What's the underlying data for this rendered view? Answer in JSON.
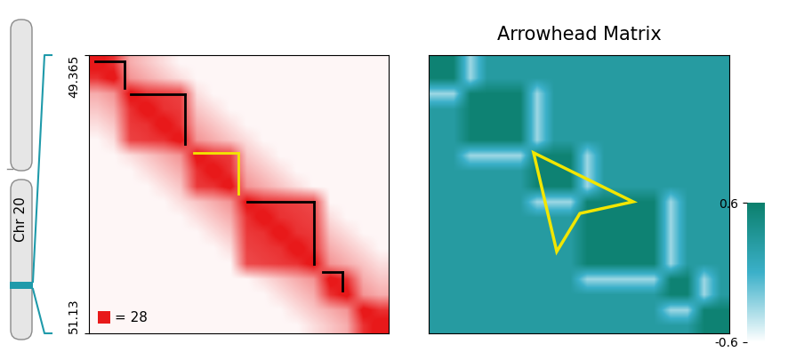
{
  "chart_data": [
    {
      "type": "heatmap",
      "chromosome_label": "Chr 20",
      "xlim": [
        49.365,
        51.13
      ],
      "ylim": [
        51.13,
        49.365
      ],
      "yticks": [
        49.365,
        51.13
      ],
      "tick_labels": "y",
      "color": "#e8191a",
      "color_range": [
        0,
        28
      ],
      "scale_label": "= 28",
      "domains": [
        {
          "start": 49.402,
          "end": 49.574,
          "color": "#000000"
        },
        {
          "start": 49.611,
          "end": 49.931,
          "color": "#000000"
        },
        {
          "start": 49.983,
          "end": 50.245,
          "color": "#f2e600"
        },
        {
          "start": 50.297,
          "end": 50.69,
          "color": "#000000"
        },
        {
          "start": 50.742,
          "end": 50.857,
          "color": "#000000"
        }
      ],
      "cells": [
        [
          30,
          25,
          10,
          7,
          4,
          1,
          1,
          1,
          1,
          1,
          1,
          1,
          1,
          1,
          1,
          1,
          1,
          1
        ],
        [
          25,
          30,
          13,
          10,
          7,
          4,
          1,
          1,
          1,
          1,
          1,
          1,
          1,
          1,
          1,
          1,
          1,
          1
        ],
        [
          10,
          13,
          30,
          25,
          24,
          23,
          4,
          1,
          1,
          1,
          1,
          1,
          1,
          1,
          1,
          1,
          1,
          1
        ],
        [
          7,
          10,
          25,
          30,
          25,
          24,
          7,
          4,
          1,
          1,
          1,
          1,
          1,
          1,
          1,
          1,
          1,
          1
        ],
        [
          4,
          7,
          24,
          25,
          30,
          25,
          10,
          7,
          4,
          1,
          1,
          1,
          1,
          1,
          1,
          1,
          1,
          1
        ],
        [
          1,
          4,
          23,
          24,
          25,
          30,
          13,
          10,
          7,
          4,
          1,
          1,
          1,
          1,
          1,
          1,
          1,
          1
        ],
        [
          1,
          1,
          4,
          7,
          10,
          13,
          30,
          25,
          24,
          7,
          4,
          1,
          1,
          1,
          1,
          1,
          1,
          1
        ],
        [
          1,
          1,
          1,
          4,
          7,
          10,
          25,
          30,
          25,
          10,
          7,
          4,
          1,
          1,
          1,
          1,
          1,
          1
        ],
        [
          1,
          1,
          1,
          1,
          4,
          7,
          24,
          25,
          30,
          13,
          10,
          7,
          4,
          1,
          1,
          1,
          1,
          1
        ],
        [
          1,
          1,
          1,
          1,
          1,
          4,
          7,
          10,
          13,
          30,
          25,
          24,
          23,
          22,
          1,
          1,
          1,
          1
        ],
        [
          1,
          1,
          1,
          1,
          1,
          1,
          4,
          7,
          10,
          25,
          30,
          25,
          24,
          23,
          4,
          1,
          1,
          1
        ],
        [
          1,
          1,
          1,
          1,
          1,
          1,
          1,
          4,
          7,
          24,
          25,
          30,
          25,
          24,
          7,
          4,
          1,
          1
        ],
        [
          1,
          1,
          1,
          1,
          1,
          1,
          1,
          1,
          4,
          23,
          24,
          25,
          30,
          25,
          10,
          7,
          4,
          1
        ],
        [
          1,
          1,
          1,
          1,
          1,
          1,
          1,
          1,
          1,
          22,
          23,
          24,
          25,
          30,
          13,
          10,
          7,
          4
        ],
        [
          1,
          1,
          1,
          1,
          1,
          1,
          1,
          1,
          1,
          1,
          4,
          7,
          10,
          13,
          30,
          25,
          10,
          7
        ],
        [
          1,
          1,
          1,
          1,
          1,
          1,
          1,
          1,
          1,
          1,
          1,
          4,
          7,
          10,
          25,
          30,
          13,
          10
        ],
        [
          1,
          1,
          1,
          1,
          1,
          1,
          1,
          1,
          1,
          1,
          1,
          1,
          4,
          7,
          10,
          13,
          30,
          25
        ],
        [
          1,
          1,
          1,
          1,
          1,
          1,
          1,
          1,
          1,
          1,
          1,
          1,
          1,
          4,
          7,
          10,
          25,
          30
        ]
      ]
    },
    {
      "type": "heatmap",
      "title": "Arrowhead Matrix",
      "tick_labels": false,
      "highlight_color": "#f2e600",
      "colorbar_range": [
        -0.6,
        0.6
      ],
      "colorbar_ticks": [
        -0.6,
        0.6
      ],
      "cells": [
        [
          0.55,
          0.55,
          -0.3,
          0.25,
          0.25,
          0.25,
          0.25,
          0.25,
          0.25,
          0.25,
          0.25,
          0.25,
          0.25,
          0.25,
          0.25,
          0.25,
          0.25,
          0.25
        ],
        [
          0.55,
          0.55,
          -0.3,
          0.25,
          0.25,
          0.25,
          0.25,
          0.25,
          0.25,
          0.25,
          0.25,
          0.25,
          0.25,
          0.25,
          0.25,
          0.25,
          0.25,
          0.25
        ],
        [
          -0.3,
          -0.3,
          0.55,
          0.55,
          0.55,
          0.55,
          -0.3,
          0.25,
          0.25,
          0.25,
          0.25,
          0.25,
          0.25,
          0.25,
          0.25,
          0.25,
          0.25,
          0.25
        ],
        [
          0.25,
          0.25,
          0.55,
          0.55,
          0.55,
          0.55,
          -0.3,
          0.25,
          0.25,
          0.25,
          0.25,
          0.25,
          0.25,
          0.25,
          0.25,
          0.25,
          0.25,
          0.25
        ],
        [
          0.25,
          0.25,
          0.55,
          0.55,
          0.55,
          0.55,
          -0.3,
          0.25,
          0.25,
          0.25,
          0.25,
          0.25,
          0.25,
          0.25,
          0.25,
          0.25,
          0.25,
          0.25
        ],
        [
          0.25,
          0.25,
          0.55,
          0.55,
          0.55,
          0.55,
          -0.3,
          0.25,
          0.25,
          0.25,
          0.25,
          0.25,
          0.25,
          0.25,
          0.25,
          0.25,
          0.25,
          0.25
        ],
        [
          0.25,
          0.25,
          -0.3,
          -0.3,
          -0.3,
          -0.3,
          0.55,
          0.55,
          0.55,
          -0.3,
          0.25,
          0.25,
          0.25,
          0.25,
          0.25,
          0.25,
          0.25,
          0.25
        ],
        [
          0.25,
          0.25,
          0.25,
          0.25,
          0.25,
          0.25,
          0.55,
          0.55,
          0.55,
          -0.3,
          0.25,
          0.25,
          0.25,
          0.25,
          0.25,
          0.25,
          0.25,
          0.25
        ],
        [
          0.25,
          0.25,
          0.25,
          0.25,
          0.25,
          0.25,
          0.55,
          0.55,
          0.55,
          -0.3,
          0.25,
          0.25,
          0.25,
          0.25,
          0.25,
          0.25,
          0.25,
          0.25
        ],
        [
          0.25,
          0.25,
          0.25,
          0.25,
          0.25,
          0.25,
          -0.3,
          -0.3,
          -0.3,
          0.55,
          0.55,
          0.55,
          0.55,
          0.55,
          -0.3,
          0.25,
          0.25,
          0.25
        ],
        [
          0.25,
          0.25,
          0.25,
          0.25,
          0.25,
          0.25,
          0.25,
          0.25,
          0.25,
          0.55,
          0.55,
          0.55,
          0.55,
          0.55,
          -0.3,
          0.25,
          0.25,
          0.25
        ],
        [
          0.25,
          0.25,
          0.25,
          0.25,
          0.25,
          0.25,
          0.25,
          0.25,
          0.25,
          0.55,
          0.55,
          0.55,
          0.55,
          0.55,
          -0.3,
          0.25,
          0.25,
          0.25
        ],
        [
          0.25,
          0.25,
          0.25,
          0.25,
          0.25,
          0.25,
          0.25,
          0.25,
          0.25,
          0.55,
          0.55,
          0.55,
          0.55,
          0.55,
          -0.3,
          0.25,
          0.25,
          0.25
        ],
        [
          0.25,
          0.25,
          0.25,
          0.25,
          0.25,
          0.25,
          0.25,
          0.25,
          0.25,
          0.55,
          0.55,
          0.55,
          0.55,
          0.55,
          -0.3,
          0.25,
          0.25,
          0.25
        ],
        [
          0.25,
          0.25,
          0.25,
          0.25,
          0.25,
          0.25,
          0.25,
          0.25,
          0.25,
          -0.3,
          -0.3,
          -0.3,
          -0.3,
          -0.3,
          0.55,
          0.55,
          -0.3,
          0.25
        ],
        [
          0.25,
          0.25,
          0.25,
          0.25,
          0.25,
          0.25,
          0.25,
          0.25,
          0.25,
          0.25,
          0.25,
          0.25,
          0.25,
          0.25,
          0.55,
          0.55,
          -0.3,
          0.25
        ],
        [
          0.25,
          0.25,
          0.25,
          0.25,
          0.25,
          0.25,
          0.25,
          0.25,
          0.25,
          0.25,
          0.25,
          0.25,
          0.25,
          0.25,
          -0.3,
          -0.3,
          0.55,
          0.55
        ],
        [
          0.25,
          0.25,
          0.25,
          0.25,
          0.25,
          0.25,
          0.25,
          0.25,
          0.25,
          0.25,
          0.25,
          0.25,
          0.25,
          0.25,
          0.25,
          0.25,
          0.55,
          0.55
        ]
      ]
    }
  ]
}
